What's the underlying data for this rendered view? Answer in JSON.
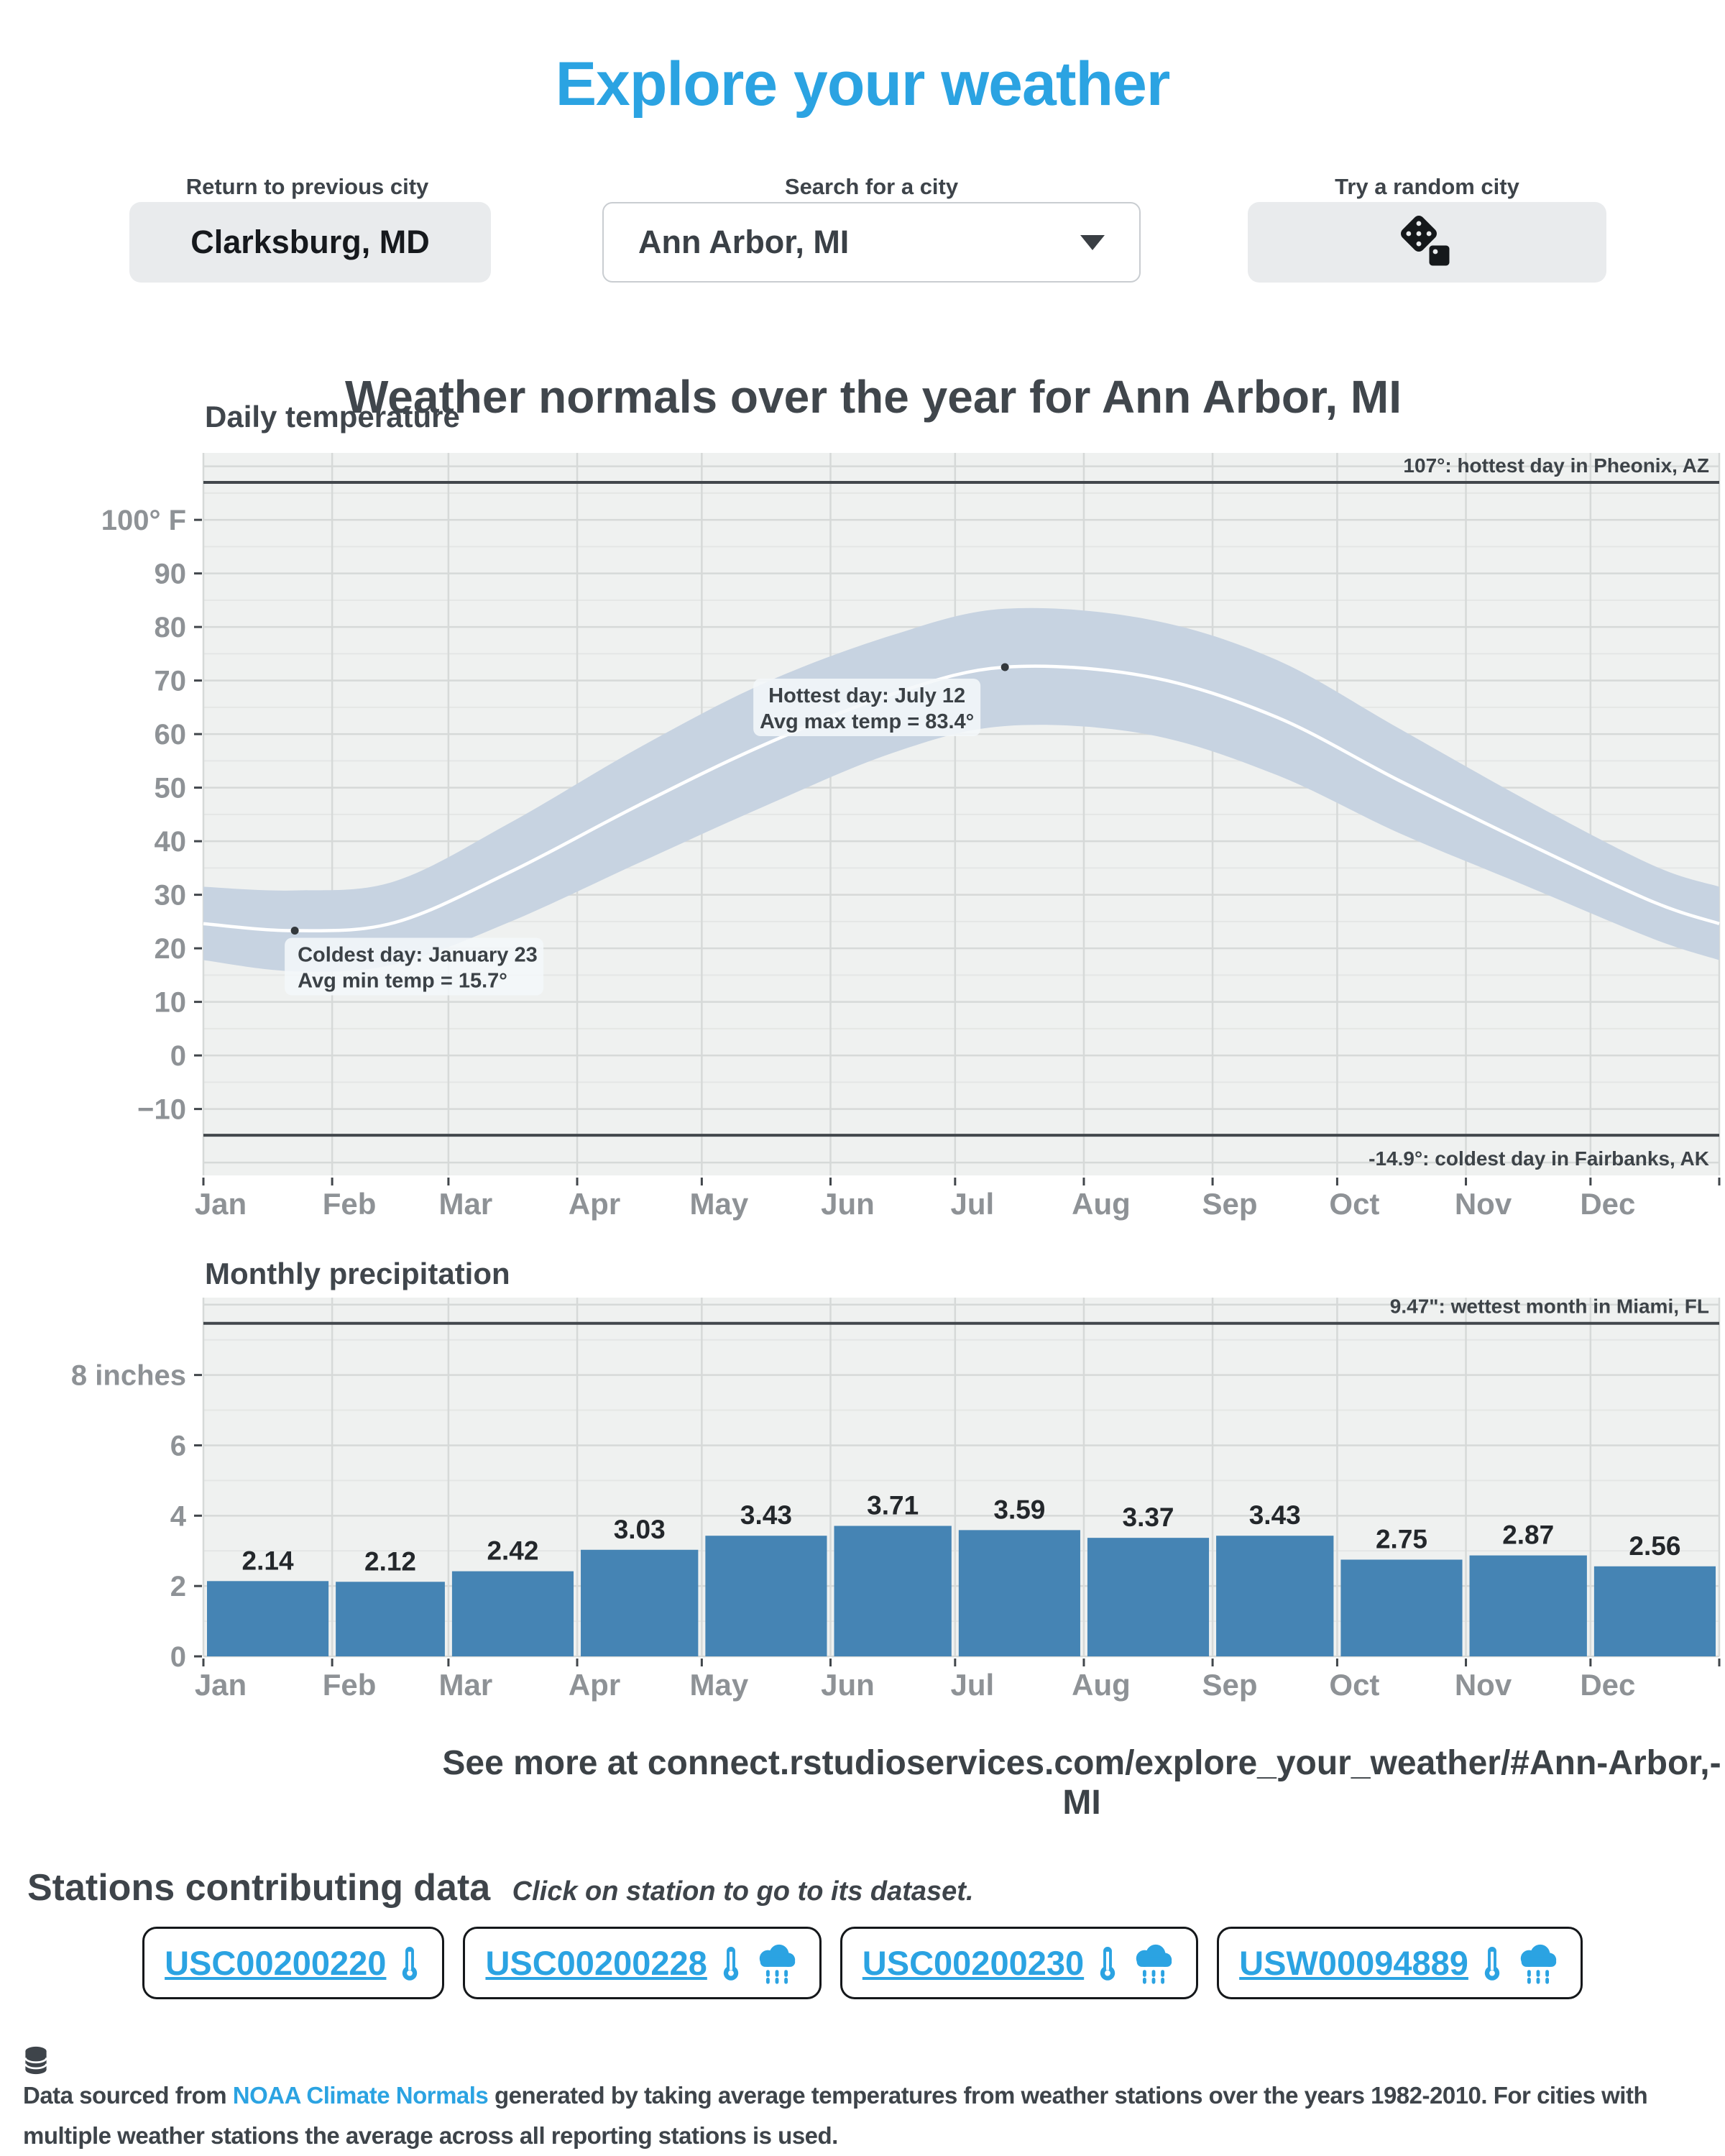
{
  "app": {
    "title": "Explore your weather"
  },
  "controls": {
    "previous_label": "Return to previous city",
    "previous_button": "Clarksburg, MD",
    "search_label": "Search for a city",
    "search_value": "Ann Arbor, MI",
    "random_label": "Try a random city"
  },
  "section_title": "Weather normals over the year for Ann Arbor, MI",
  "chart_data": [
    {
      "type": "line",
      "title": "Daily temperature",
      "x_tick_labels": [
        "Jan",
        "Feb",
        "Mar",
        "Apr",
        "May",
        "Jun",
        "Jul",
        "Aug",
        "Sep",
        "Oct",
        "Nov",
        "Dec"
      ],
      "month_boundaries_day_of_year": [
        0,
        31,
        59,
        90,
        120,
        151,
        181,
        212,
        243,
        273,
        304,
        334,
        365
      ],
      "y_ticks": [
        -10,
        0,
        10,
        20,
        30,
        40,
        50,
        60,
        70,
        80,
        90,
        100
      ],
      "y_tick_labels": [
        "−10",
        "0",
        "10",
        "20",
        "30",
        "40",
        "50",
        "60",
        "70",
        "80",
        "90",
        "100° F"
      ],
      "ylim": [
        -22.4,
        112.5
      ],
      "x_day": [
        0,
        22,
        46,
        74,
        105,
        135,
        166,
        193,
        227,
        258,
        288,
        319,
        349,
        365
      ],
      "series_max": [
        31.5,
        30.8,
        32.5,
        43.5,
        57.5,
        69.5,
        78.5,
        83.4,
        81.5,
        74.0,
        61.0,
        47.5,
        35.5,
        31.5
      ],
      "series_mean": [
        24.6,
        23.3,
        24.8,
        34.3,
        46.8,
        58.0,
        67.5,
        72.5,
        70.8,
        63.3,
        51.3,
        39.5,
        28.7,
        24.6
      ],
      "series_min": [
        17.8,
        15.7,
        17.0,
        25.0,
        36.0,
        46.5,
        56.5,
        61.5,
        60.0,
        52.5,
        41.5,
        31.5,
        21.8,
        17.8
      ],
      "band_color": "#c7d3e1",
      "line_color": "#ffffff",
      "reference_lines": [
        {
          "value": 107,
          "label": "107°: hottest day in Pheonix, AZ",
          "label_side": "above"
        },
        {
          "value": -14.9,
          "label": "-14.9°: coldest day in Fairbanks, AK",
          "label_side": "below"
        }
      ],
      "annotations": [
        {
          "day": 193,
          "value": 72.5,
          "lines": [
            "Hottest day: July 12",
            "Avg max temp = 83.4°"
          ],
          "align": "center"
        },
        {
          "day": 22,
          "value": 23.3,
          "lines": [
            "Coldest day: January 23",
            "Avg min temp = 15.7°"
          ],
          "align": "left"
        }
      ]
    },
    {
      "type": "bar",
      "title": "Monthly precipitation",
      "categories": [
        "Jan",
        "Feb",
        "Mar",
        "Apr",
        "May",
        "Jun",
        "Jul",
        "Aug",
        "Sep",
        "Oct",
        "Nov",
        "Dec"
      ],
      "values": [
        2.14,
        2.12,
        2.42,
        3.03,
        3.43,
        3.71,
        3.59,
        3.37,
        3.43,
        2.75,
        2.87,
        2.56
      ],
      "value_labels": [
        "2.14",
        "2.12",
        "2.42",
        "3.03",
        "3.43",
        "3.71",
        "3.59",
        "3.37",
        "3.43",
        "2.75",
        "2.87",
        "2.56"
      ],
      "y_ticks": [
        0,
        2,
        4,
        6,
        8
      ],
      "y_tick_labels": [
        "0",
        "2",
        "4",
        "6",
        "8 inches"
      ],
      "ylim": [
        0,
        10.2
      ],
      "bar_color": "#4584b4",
      "reference_lines": [
        {
          "value": 9.47,
          "label": "9.47\": wettest month in Miami, FL",
          "label_side": "above"
        }
      ]
    }
  ],
  "caption": "See more at connect.rstudioservices.com/explore_your_weather/#Ann-Arbor,-MI",
  "stations": {
    "heading": "Stations contributing data",
    "note": "Click on station to go to its dataset.",
    "items": [
      {
        "id": "USC00200220",
        "icons": [
          "thermometer"
        ]
      },
      {
        "id": "USC00200228",
        "icons": [
          "thermometer",
          "rain-cloud"
        ]
      },
      {
        "id": "USC00200230",
        "icons": [
          "thermometer",
          "rain-cloud"
        ]
      },
      {
        "id": "USW00094889",
        "icons": [
          "thermometer",
          "rain-cloud"
        ]
      }
    ]
  },
  "footer": {
    "prefix": "Data sourced from",
    "link": "NOAA Climate Normals",
    "suffix": "generated by taking average temperatures from weather stations over the years 1982-2010. For cities with multiple weather stations the average across all reporting stations is used."
  },
  "colors": {
    "accent": "#2ba3e2",
    "heading": "#40464c",
    "tick_text": "#8e9296",
    "panel_bg": "#eff1f0",
    "band": "#c7d3e1",
    "mean_line": "#ffffff",
    "bar": "#4584b4",
    "reference_line": "#42474c"
  }
}
